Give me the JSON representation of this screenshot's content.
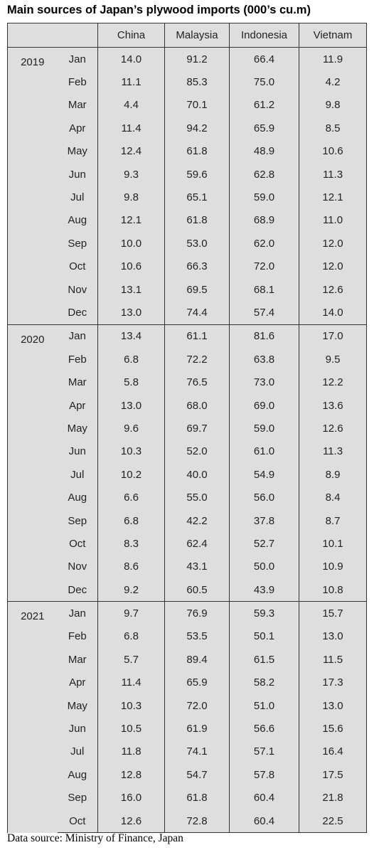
{
  "header": {
    "title": "Main sources of Japan’s plywood imports (000’s cu.m)"
  },
  "table": {
    "columns": [
      "China",
      "Malaysia",
      "Indonesia",
      "Vietnam"
    ],
    "groups": [
      {
        "year": "2019",
        "rows": [
          [
            "Jan",
            "14.0",
            "91.2",
            "66.4",
            "11.9"
          ],
          [
            "Feb",
            "11.1",
            "85.3",
            "75.0",
            "4.2"
          ],
          [
            "Mar",
            "4.4",
            "70.1",
            "61.2",
            "9.8"
          ],
          [
            "Apr",
            "11.4",
            "94.2",
            "65.9",
            "8.5"
          ],
          [
            "May",
            "12.4",
            "61.8",
            "48.9",
            "10.6"
          ],
          [
            "Jun",
            "9.3",
            "59.6",
            "62.8",
            "11.3"
          ],
          [
            "Jul",
            "9.8",
            "65.1",
            "59.0",
            "12.1"
          ],
          [
            "Aug",
            "12.1",
            "61.8",
            "68.9",
            "11.0"
          ],
          [
            "Sep",
            "10.0",
            "53.0",
            "62.0",
            "12.0"
          ],
          [
            "Oct",
            "10.6",
            "66.3",
            "72.0",
            "12.0"
          ],
          [
            "Nov",
            "13.1",
            "69.5",
            "68.1",
            "12.6"
          ],
          [
            "Dec",
            "13.0",
            "74.4",
            "57.4",
            "14.0"
          ]
        ]
      },
      {
        "year": "2020",
        "rows": [
          [
            "Jan",
            "13.4",
            "61.1",
            "81.6",
            "17.0"
          ],
          [
            "Feb",
            "6.8",
            "72.2",
            "63.8",
            "9.5"
          ],
          [
            "Mar",
            "5.8",
            "76.5",
            "73.0",
            "12.2"
          ],
          [
            "Apr",
            "13.0",
            "68.0",
            "69.0",
            "13.6"
          ],
          [
            "May",
            "9.6",
            "69.7",
            "59.0",
            "12.6"
          ],
          [
            "Jun",
            "10.3",
            "52.0",
            "61.0",
            "11.3"
          ],
          [
            "Jul",
            "10.2",
            "40.0",
            "54.9",
            "8.9"
          ],
          [
            "Aug",
            "6.6",
            "55.0",
            "56.0",
            "8.4"
          ],
          [
            "Sep",
            "6.8",
            "42.2",
            "37.8",
            "8.7"
          ],
          [
            "Oct",
            "8.3",
            "62.4",
            "52.7",
            "10.1"
          ],
          [
            "Nov",
            "8.6",
            "43.1",
            "50.0",
            "10.9"
          ],
          [
            "Dec",
            "9.2",
            "60.5",
            "43.9",
            "10.8"
          ]
        ]
      },
      {
        "year": "2021",
        "rows": [
          [
            "Jan",
            "9.7",
            "76.9",
            "59.3",
            "15.7"
          ],
          [
            "Feb",
            "6.8",
            "53.5",
            "50.1",
            "13.0"
          ],
          [
            "Mar",
            "5.7",
            "89.4",
            "61.5",
            "11.5"
          ],
          [
            "Apr",
            "11.4",
            "65.9",
            "58.2",
            "17.3"
          ],
          [
            "May",
            "10.3",
            "72.0",
            "51.0",
            "13.0"
          ],
          [
            "Jun",
            "10.5",
            "61.9",
            "56.6",
            "15.6"
          ],
          [
            "Jul",
            "11.8",
            "74.1",
            "57.1",
            "16.4"
          ],
          [
            "Aug",
            "12.8",
            "54.7",
            "57.8",
            "17.5"
          ],
          [
            "Sep",
            "16.0",
            "61.8",
            "60.4",
            "21.8"
          ],
          [
            "Oct",
            "12.6",
            "72.8",
            "60.4",
            "22.5"
          ]
        ]
      }
    ]
  },
  "footer": {
    "source": "Data source: Ministry of Finance, Japan"
  }
}
